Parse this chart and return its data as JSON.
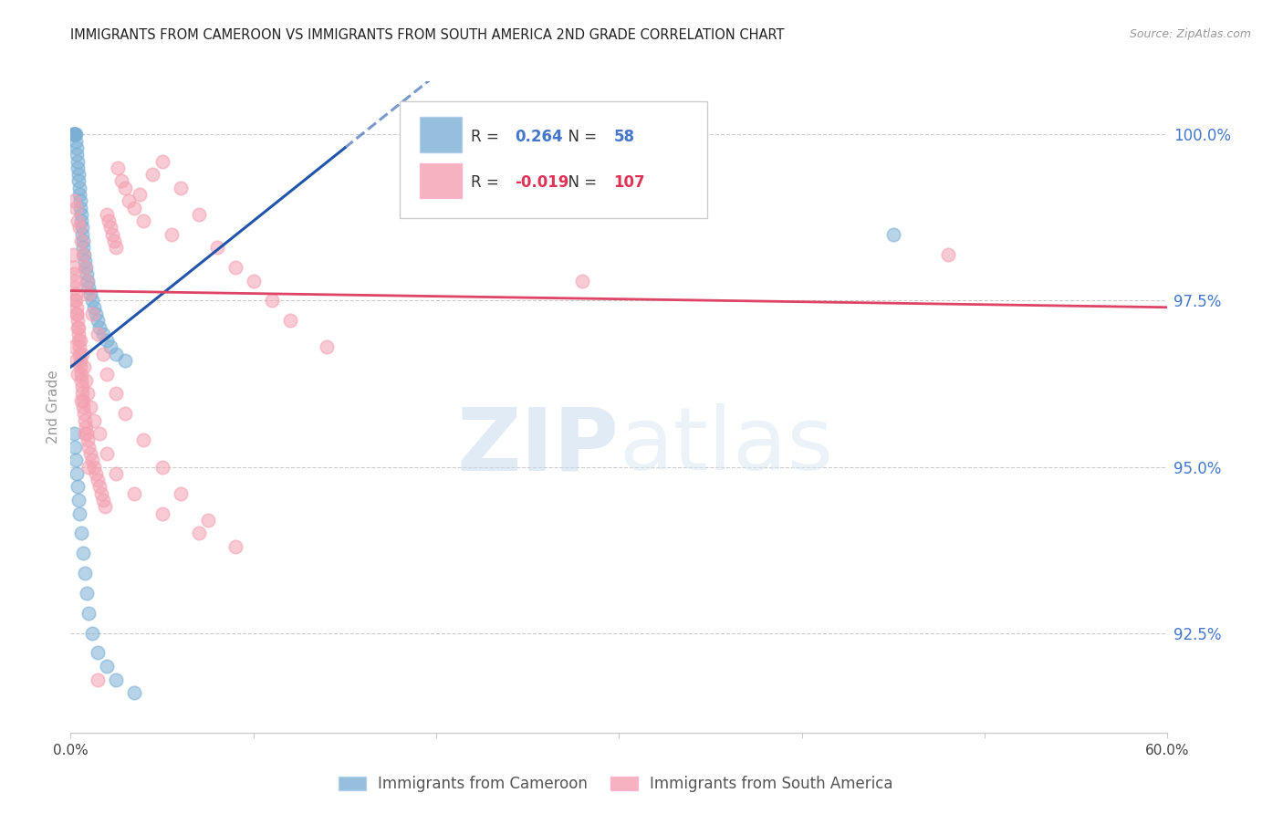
{
  "title": "IMMIGRANTS FROM CAMEROON VS IMMIGRANTS FROM SOUTH AMERICA 2ND GRADE CORRELATION CHART",
  "source": "Source: ZipAtlas.com",
  "ylabel": "2nd Grade",
  "right_yticks": [
    92.5,
    95.0,
    97.5,
    100.0
  ],
  "right_yticklabels": [
    "92.5%",
    "95.0%",
    "97.5%",
    "100.0%"
  ],
  "xmin": 0.0,
  "xmax": 60.0,
  "ymin": 91.0,
  "ymax": 100.8,
  "legend_r_blue": "0.264",
  "legend_n_blue": "58",
  "legend_r_pink": "-0.019",
  "legend_n_pink": "107",
  "blue_color": "#7BAFD4",
  "pink_color": "#F4A0B0",
  "trend_blue_color": "#2255AA",
  "trend_pink_color": "#DD4466",
  "blue_trend_x": [
    0.0,
    15.0
  ],
  "blue_trend_y": [
    96.5,
    99.8
  ],
  "pink_trend_x": [
    0.0,
    60.0
  ],
  "pink_trend_y": [
    97.65,
    97.4
  ],
  "blue_scatter_x": [
    0.15,
    0.18,
    0.2,
    0.22,
    0.25,
    0.28,
    0.3,
    0.32,
    0.35,
    0.38,
    0.4,
    0.42,
    0.45,
    0.48,
    0.5,
    0.52,
    0.55,
    0.58,
    0.6,
    0.62,
    0.65,
    0.68,
    0.7,
    0.75,
    0.8,
    0.85,
    0.9,
    0.95,
    1.0,
    1.1,
    1.2,
    1.3,
    1.4,
    1.5,
    1.6,
    1.8,
    2.0,
    2.2,
    2.5,
    3.0,
    0.2,
    0.25,
    0.3,
    0.35,
    0.4,
    0.45,
    0.5,
    0.6,
    0.7,
    0.8,
    0.9,
    1.0,
    1.2,
    1.5,
    2.0,
    2.5,
    3.5,
    45.0
  ],
  "blue_scatter_y": [
    100.0,
    100.0,
    100.0,
    100.0,
    100.0,
    100.0,
    99.9,
    99.8,
    99.7,
    99.6,
    99.5,
    99.4,
    99.3,
    99.2,
    99.1,
    99.0,
    98.9,
    98.8,
    98.7,
    98.6,
    98.5,
    98.4,
    98.3,
    98.2,
    98.1,
    98.0,
    97.9,
    97.8,
    97.7,
    97.6,
    97.5,
    97.4,
    97.3,
    97.2,
    97.1,
    97.0,
    96.9,
    96.8,
    96.7,
    96.6,
    95.5,
    95.3,
    95.1,
    94.9,
    94.7,
    94.5,
    94.3,
    94.0,
    93.7,
    93.4,
    93.1,
    92.8,
    92.5,
    92.2,
    92.0,
    91.8,
    91.6,
    98.5
  ],
  "pink_scatter_x": [
    0.15,
    0.18,
    0.2,
    0.22,
    0.25,
    0.28,
    0.3,
    0.32,
    0.35,
    0.38,
    0.4,
    0.42,
    0.45,
    0.48,
    0.5,
    0.52,
    0.55,
    0.58,
    0.6,
    0.62,
    0.65,
    0.68,
    0.7,
    0.75,
    0.8,
    0.85,
    0.9,
    0.95,
    1.0,
    1.1,
    1.2,
    1.3,
    1.4,
    1.5,
    1.6,
    1.7,
    1.8,
    1.9,
    2.0,
    2.1,
    2.2,
    2.3,
    2.4,
    2.5,
    2.6,
    2.8,
    3.0,
    3.2,
    3.5,
    3.8,
    4.0,
    4.5,
    5.0,
    5.5,
    6.0,
    7.0,
    8.0,
    9.0,
    10.0,
    11.0,
    12.0,
    14.0,
    0.2,
    0.3,
    0.4,
    0.5,
    0.6,
    0.7,
    0.8,
    0.9,
    1.0,
    1.2,
    1.5,
    1.8,
    2.0,
    2.5,
    3.0,
    4.0,
    5.0,
    6.0,
    7.5,
    9.0,
    0.25,
    0.35,
    0.45,
    0.55,
    0.65,
    0.75,
    0.85,
    0.95,
    1.1,
    1.3,
    1.6,
    2.0,
    2.5,
    3.5,
    5.0,
    7.0,
    28.0,
    48.0,
    0.2,
    0.3,
    0.4,
    0.6,
    0.8,
    1.0,
    1.5
  ],
  "pink_scatter_y": [
    98.2,
    98.0,
    97.9,
    97.8,
    97.7,
    97.6,
    97.5,
    97.4,
    97.3,
    97.2,
    97.1,
    97.0,
    96.9,
    96.8,
    96.7,
    96.6,
    96.5,
    96.4,
    96.3,
    96.2,
    96.1,
    96.0,
    95.9,
    95.8,
    95.7,
    95.6,
    95.5,
    95.4,
    95.3,
    95.2,
    95.1,
    95.0,
    94.9,
    94.8,
    94.7,
    94.6,
    94.5,
    94.4,
    98.8,
    98.7,
    98.6,
    98.5,
    98.4,
    98.3,
    99.5,
    99.3,
    99.2,
    99.0,
    98.9,
    99.1,
    98.7,
    99.4,
    99.6,
    98.5,
    99.2,
    98.8,
    98.3,
    98.0,
    97.8,
    97.5,
    97.2,
    96.8,
    99.0,
    98.9,
    98.7,
    98.6,
    98.4,
    98.2,
    98.0,
    97.8,
    97.6,
    97.3,
    97.0,
    96.7,
    96.4,
    96.1,
    95.8,
    95.4,
    95.0,
    94.6,
    94.2,
    93.8,
    97.5,
    97.3,
    97.1,
    96.9,
    96.7,
    96.5,
    96.3,
    96.1,
    95.9,
    95.7,
    95.5,
    95.2,
    94.9,
    94.6,
    94.3,
    94.0,
    97.8,
    98.2,
    96.8,
    96.6,
    96.4,
    96.0,
    95.5,
    95.0,
    91.8
  ]
}
